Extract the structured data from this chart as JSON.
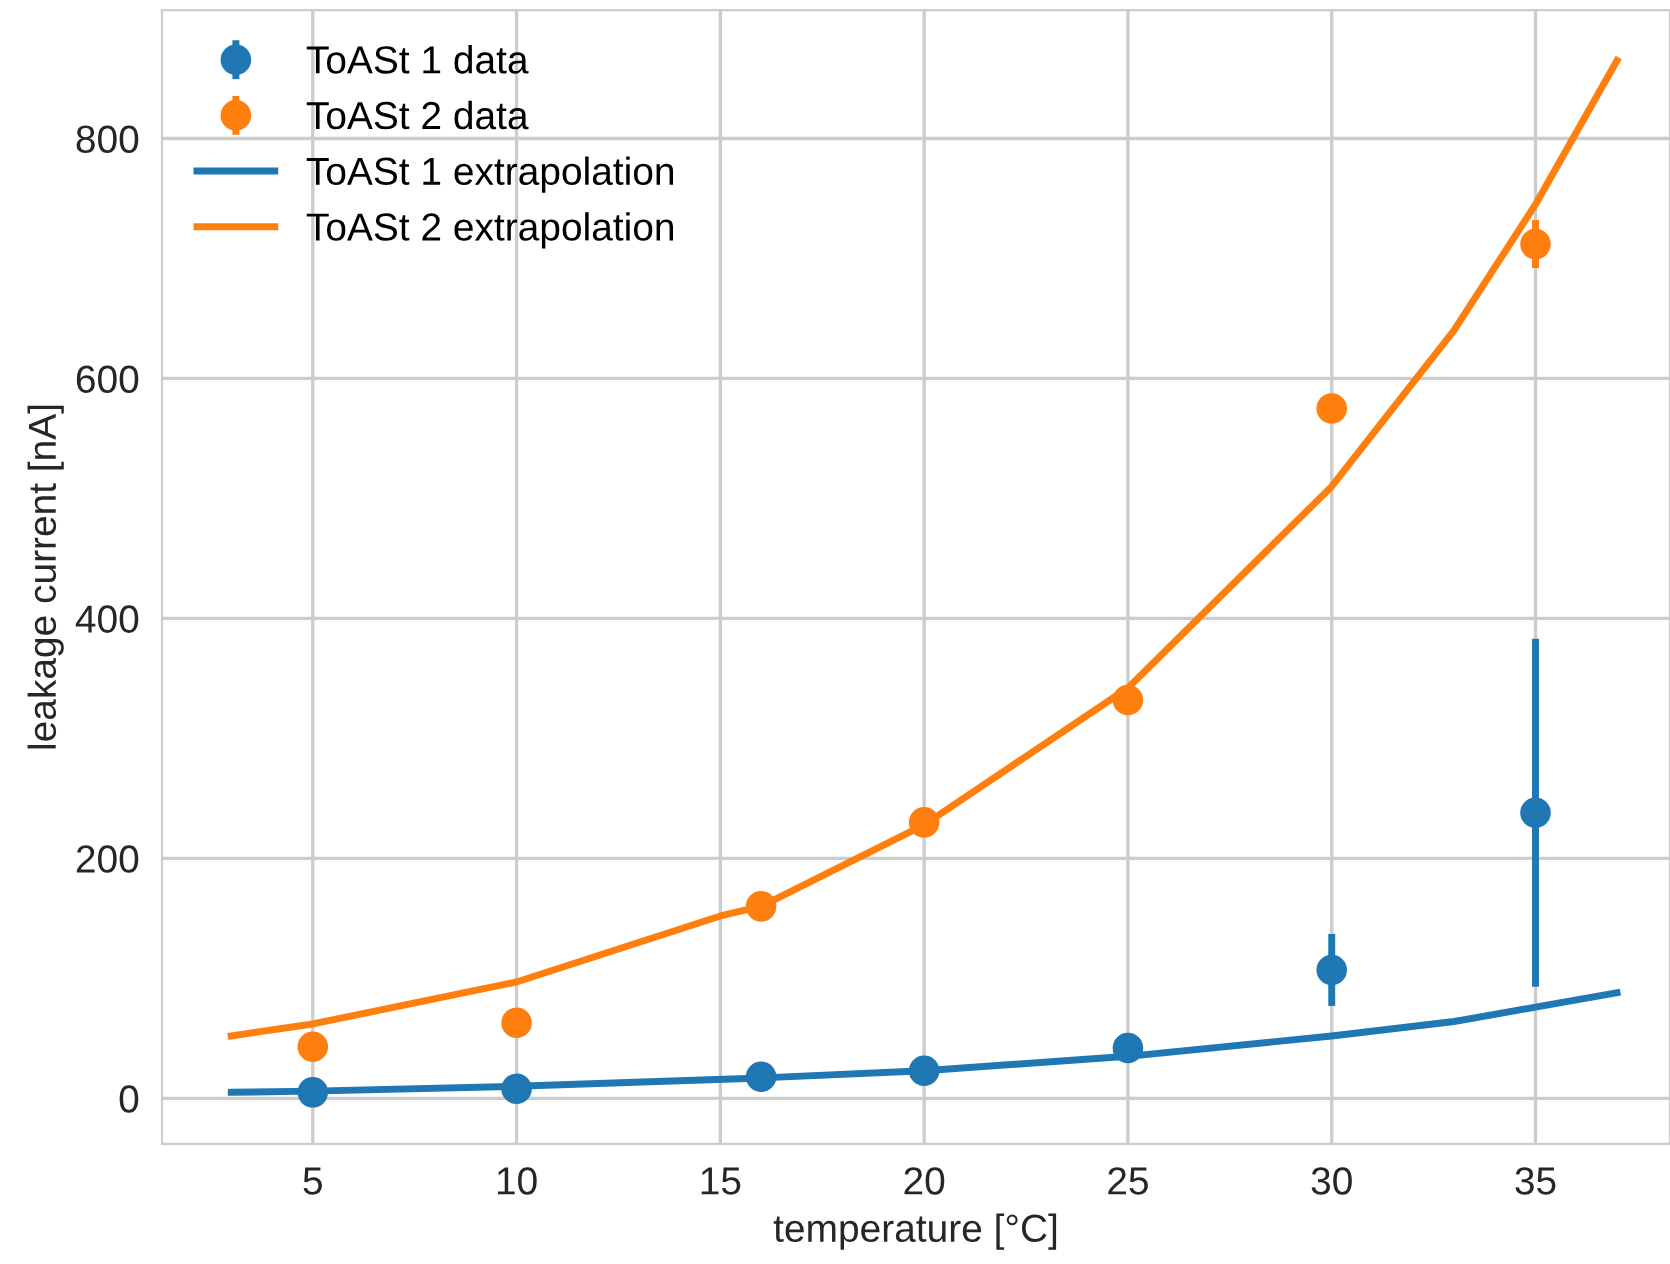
{
  "chart_data": {
    "type": "scatter",
    "xlabel": "temperature [°C]",
    "ylabel": "leakage current [nA]",
    "xlim": [
      1.3,
      38.3
    ],
    "ylim": [
      -38,
      907
    ],
    "xticks": [
      5,
      10,
      15,
      20,
      25,
      30,
      35
    ],
    "yticks": [
      0,
      200,
      400,
      600,
      800
    ],
    "grid": true,
    "legend": "top left",
    "series": [
      {
        "name": "ToASt 1 data",
        "marker": "circle",
        "color": "#1f77b4",
        "x": [
          5,
          10,
          16,
          20,
          25,
          30,
          35
        ],
        "values": [
          5,
          8,
          18,
          23,
          42,
          107,
          238
        ],
        "errors": [
          null,
          null,
          null,
          null,
          null,
          30,
          145
        ]
      },
      {
        "name": "ToASt 2 data",
        "marker": "circle",
        "color": "#ff7f0e",
        "x": [
          5,
          10,
          16,
          20,
          25,
          30,
          35
        ],
        "values": [
          43,
          63,
          160,
          230,
          332,
          575,
          712
        ],
        "errors": [
          null,
          null,
          null,
          null,
          null,
          null,
          20
        ]
      },
      {
        "name": "ToASt 1 extrapolation",
        "type": "line",
        "color": "#1f77b4",
        "x": [
          3,
          5,
          10,
          16,
          20,
          25,
          30,
          33,
          35,
          37
        ],
        "values": [
          5,
          6,
          10,
          17,
          23,
          35,
          52,
          64,
          76,
          88
        ]
      },
      {
        "name": "ToASt 2 extrapolation",
        "type": "line",
        "color": "#ff7f0e",
        "x": [
          3,
          5,
          10,
          15,
          16,
          20,
          25,
          30,
          33,
          35,
          37
        ],
        "values": [
          52,
          62,
          97,
          152,
          160,
          228,
          342,
          510,
          640,
          745,
          865
        ]
      }
    ]
  }
}
